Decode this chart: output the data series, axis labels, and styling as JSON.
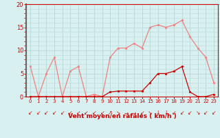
{
  "x": [
    0,
    1,
    2,
    3,
    4,
    5,
    6,
    7,
    8,
    9,
    10,
    11,
    12,
    13,
    14,
    15,
    16,
    17,
    18,
    19,
    20,
    21,
    22,
    23
  ],
  "rafales": [
    6.5,
    0,
    5,
    8.5,
    0,
    5.5,
    6.5,
    0,
    0.5,
    0,
    8.5,
    10.5,
    10.5,
    11.5,
    10.5,
    15,
    15.5,
    15,
    15.5,
    16.5,
    13,
    10.5,
    8.5,
    3
  ],
  "moyen": [
    0,
    0,
    0,
    0,
    0,
    0,
    0,
    0,
    0,
    0,
    1,
    1.2,
    1.2,
    1.2,
    1.2,
    3,
    5,
    5,
    5.5,
    6.5,
    1,
    0,
    0,
    0.5
  ],
  "rafales_color": "#f08080",
  "moyen_color": "#cc0000",
  "bg_color": "#d8f0f0",
  "grid_color": "#b8d8d8",
  "xlabel": "Vent moyen/en rafales ( km/h )",
  "xlabel_color": "#cc0000",
  "ylabel_max": 20,
  "yticks": [
    0,
    5,
    10,
    15,
    20
  ],
  "tick_color": "#cc0000",
  "left_spine_color": "#666666",
  "arrows": [
    "↙",
    "↙",
    "↙",
    "↙",
    "↙",
    "↙",
    "↙",
    "↙",
    "↙",
    "↙",
    "↗",
    "↘",
    "→",
    "→",
    "↙",
    "↘",
    "↓",
    "↓",
    "↙",
    "↙",
    "↙",
    "↘",
    "↙",
    "↙"
  ]
}
